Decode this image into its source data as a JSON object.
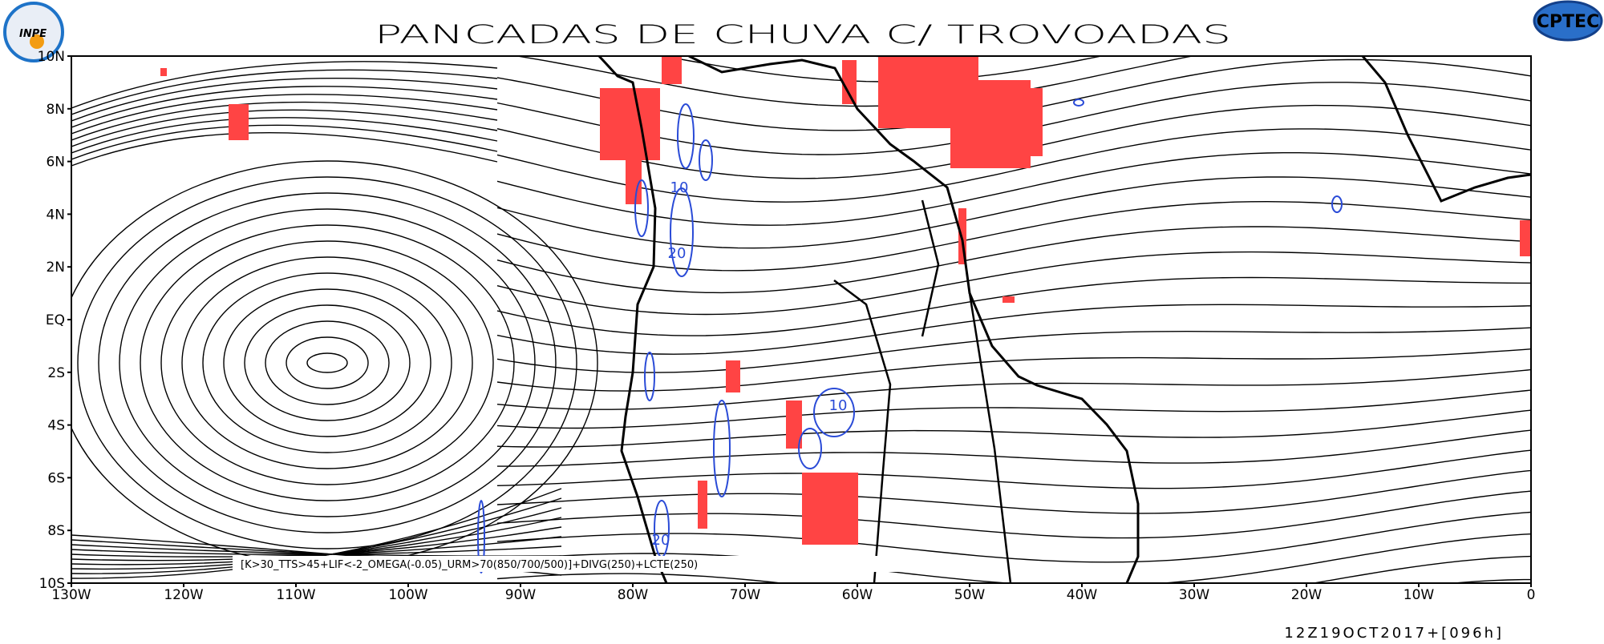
{
  "header": {
    "title": "PANCADAS DE CHUVA C/ TROVOADAS",
    "left_logo": "INPE",
    "right_logo": "CPTEC"
  },
  "map": {
    "lat_labels": [
      "10N",
      "8N",
      "6N",
      "4N",
      "2N",
      "EQ",
      "2S",
      "4S",
      "6S",
      "8S",
      "10S"
    ],
    "lon_labels": [
      "130W",
      "120W",
      "110W",
      "100W",
      "90W",
      "80W",
      "70W",
      "60W",
      "50W",
      "40W",
      "30W",
      "20W",
      "10W",
      "0"
    ],
    "contour_labels": [
      "10",
      "20",
      "10",
      "20"
    ],
    "legend_text": "[K>30_TTS>45+LIF<-2_OMEGA(-0.05)_URM>70(850/700/500)]+DIVG(250)+LCTE(250)"
  },
  "footer": {
    "timestamp": "12Z19OCT2017+[096h]"
  }
}
